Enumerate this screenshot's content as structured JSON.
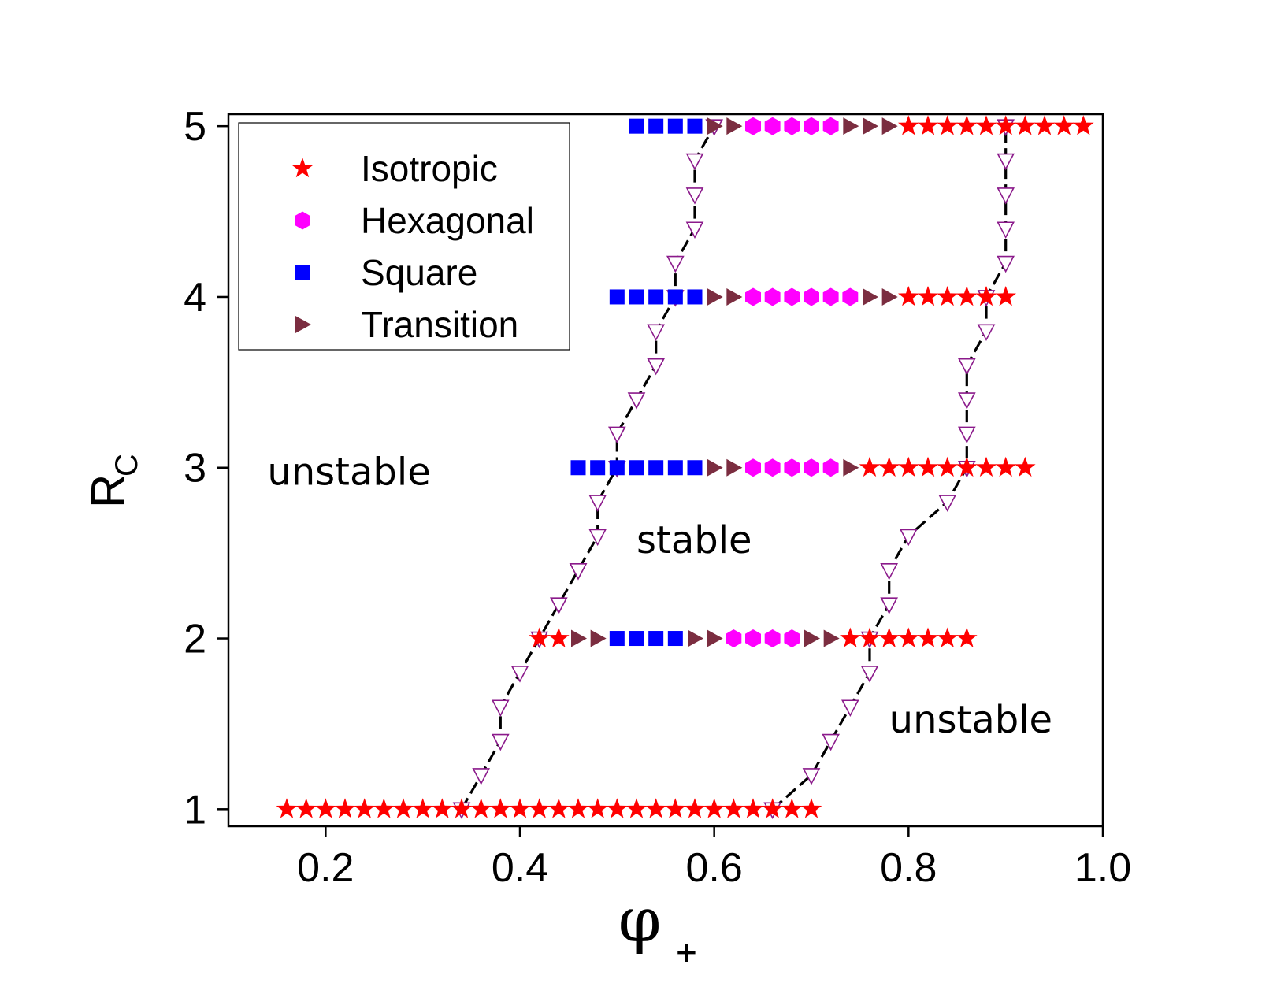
{
  "chart_data": {
    "type": "scatter",
    "title": "",
    "xlabel": {
      "main": "φ",
      "sub": "+"
    },
    "ylabel": {
      "main": "R",
      "sub": "C"
    },
    "xlim": [
      0.1,
      1.0
    ],
    "ylim": [
      0.9,
      5.07
    ],
    "xticks": [
      0.2,
      0.4,
      0.6,
      0.8,
      1.0
    ],
    "xtick_labels": [
      "0.2",
      "0.4",
      "0.6",
      "0.8",
      "1.0"
    ],
    "yticks": [
      1,
      2,
      3,
      4,
      5
    ],
    "ytick_labels": [
      "1",
      "2",
      "3",
      "4",
      "5"
    ],
    "grid": false,
    "legend_position": "top-left",
    "legend": [
      {
        "key": "isotropic",
        "label": "Isotropic",
        "marker": "star",
        "color": "#ff0000"
      },
      {
        "key": "hexagonal",
        "label": "Hexagonal",
        "marker": "hexagon",
        "color": "#ff00ff"
      },
      {
        "key": "square",
        "label": "Square",
        "marker": "square",
        "color": "#0000ff"
      },
      {
        "key": "transition",
        "label": "Transition",
        "marker": "triangle-right",
        "color": "#7b2d40"
      }
    ],
    "rows": [
      {
        "y": 1,
        "segments": [
          {
            "type": "isotropic",
            "x": [
              0.16,
              0.18,
              0.2,
              0.22,
              0.24,
              0.26,
              0.28,
              0.3,
              0.32,
              0.34,
              0.36,
              0.38,
              0.4,
              0.42,
              0.44,
              0.46,
              0.48,
              0.5,
              0.52,
              0.54,
              0.56,
              0.58,
              0.6,
              0.62,
              0.64,
              0.66,
              0.68,
              0.7
            ]
          }
        ]
      },
      {
        "y": 2,
        "segments": [
          {
            "type": "isotropic",
            "x": [
              0.42,
              0.44
            ]
          },
          {
            "type": "transition",
            "x": [
              0.46,
              0.48
            ]
          },
          {
            "type": "square",
            "x": [
              0.5,
              0.52,
              0.54,
              0.56
            ]
          },
          {
            "type": "transition",
            "x": [
              0.58,
              0.6
            ]
          },
          {
            "type": "hexagonal",
            "x": [
              0.62,
              0.64,
              0.66,
              0.68
            ]
          },
          {
            "type": "transition",
            "x": [
              0.7,
              0.72
            ]
          },
          {
            "type": "isotropic",
            "x": [
              0.74,
              0.76,
              0.78,
              0.8,
              0.82,
              0.84,
              0.86
            ]
          }
        ]
      },
      {
        "y": 3,
        "segments": [
          {
            "type": "square",
            "x": [
              0.46,
              0.48,
              0.5,
              0.52,
              0.54,
              0.56,
              0.58
            ]
          },
          {
            "type": "transition",
            "x": [
              0.6,
              0.62
            ]
          },
          {
            "type": "hexagonal",
            "x": [
              0.64,
              0.66,
              0.68,
              0.7,
              0.72
            ]
          },
          {
            "type": "transition",
            "x": [
              0.74
            ]
          },
          {
            "type": "isotropic",
            "x": [
              0.76,
              0.78,
              0.8,
              0.82,
              0.84,
              0.86,
              0.88,
              0.9,
              0.92
            ]
          }
        ]
      },
      {
        "y": 4,
        "segments": [
          {
            "type": "square",
            "x": [
              0.5,
              0.52,
              0.54,
              0.56,
              0.58
            ]
          },
          {
            "type": "transition",
            "x": [
              0.6,
              0.62
            ]
          },
          {
            "type": "hexagonal",
            "x": [
              0.64,
              0.66,
              0.68,
              0.7,
              0.72,
              0.74
            ]
          },
          {
            "type": "transition",
            "x": [
              0.76,
              0.78
            ]
          },
          {
            "type": "isotropic",
            "x": [
              0.8,
              0.82,
              0.84,
              0.86,
              0.88,
              0.9
            ]
          }
        ]
      },
      {
        "y": 5,
        "segments": [
          {
            "type": "square",
            "x": [
              0.52,
              0.54,
              0.56,
              0.58
            ]
          },
          {
            "type": "transition",
            "x": [
              0.6,
              0.62
            ]
          },
          {
            "type": "hexagonal",
            "x": [
              0.64,
              0.66,
              0.68,
              0.7,
              0.72
            ]
          },
          {
            "type": "transition",
            "x": [
              0.74,
              0.76,
              0.78
            ]
          },
          {
            "type": "isotropic",
            "x": [
              0.8,
              0.82,
              0.84,
              0.86,
              0.88,
              0.9,
              0.92,
              0.94,
              0.96,
              0.98
            ]
          }
        ]
      }
    ],
    "boundaries": [
      {
        "name": "left-boundary",
        "x": [
          0.34,
          0.36,
          0.38,
          0.38,
          0.4,
          0.42,
          0.44,
          0.46,
          0.46,
          0.48,
          0.48,
          0.5,
          0.5,
          0.52,
          0.54,
          0.54,
          0.56,
          0.56,
          0.58,
          0.58,
          0.58,
          0.6
        ],
        "y": [
          1.0,
          1.2,
          1.4,
          1.6,
          1.8,
          2.0,
          2.2,
          2.4,
          2.4,
          2.6,
          2.8,
          3.0,
          3.2,
          3.4,
          3.6,
          3.8,
          4.0,
          4.2,
          4.4,
          4.6,
          4.8,
          5.0
        ]
      },
      {
        "name": "right-boundary",
        "x": [
          0.66,
          0.7,
          0.72,
          0.74,
          0.76,
          0.76,
          0.78,
          0.78,
          0.8,
          0.84,
          0.86,
          0.86,
          0.86,
          0.86,
          0.88,
          0.88,
          0.9,
          0.9,
          0.9,
          0.9,
          0.9
        ],
        "y": [
          1.0,
          1.2,
          1.4,
          1.6,
          1.8,
          2.0,
          2.2,
          2.4,
          2.6,
          2.8,
          3.0,
          3.2,
          3.4,
          3.6,
          3.8,
          4.0,
          4.2,
          4.4,
          4.6,
          4.8,
          5.0
        ]
      }
    ],
    "annotations": [
      {
        "key": "unstable-left",
        "text": "unstable",
        "x": 0.14,
        "y": 2.9
      },
      {
        "key": "stable",
        "text": "stable",
        "x": 0.52,
        "y": 2.5
      },
      {
        "key": "unstable-right",
        "text": "unstable",
        "x": 0.78,
        "y": 1.45
      }
    ]
  }
}
